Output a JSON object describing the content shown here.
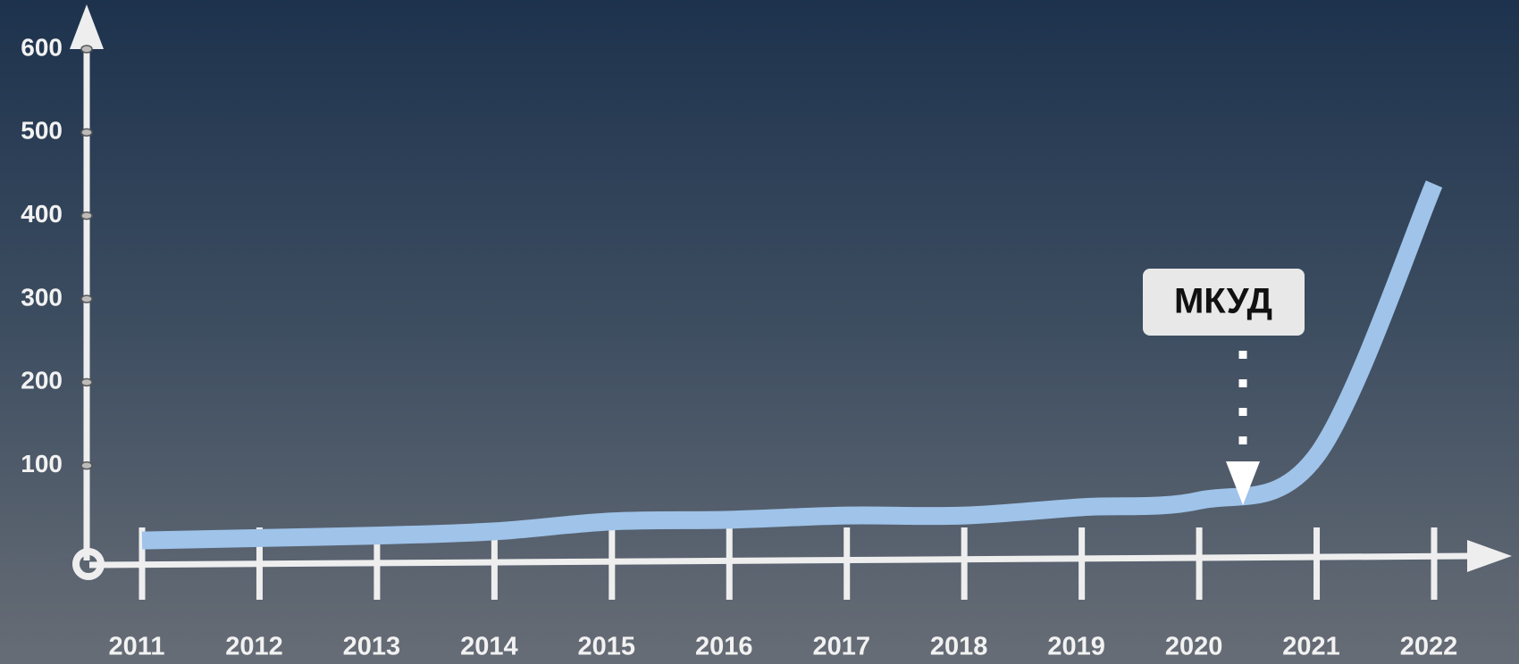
{
  "chart_data": {
    "type": "line",
    "categories": [
      "2011",
      "2012",
      "2013",
      "2014",
      "2015",
      "2016",
      "2017",
      "2018",
      "2019",
      "2020",
      "2021",
      "2022"
    ],
    "series": [
      {
        "color": "#9fc3e9",
        "values": [
          10,
          13,
          16,
          21,
          33,
          35,
          40,
          40,
          50,
          58,
          112,
          438
        ]
      }
    ],
    "ylim": [
      0,
      600
    ],
    "yticks": [
      100,
      200,
      300,
      400,
      500,
      600
    ],
    "annotation": "МКУД"
  }
}
